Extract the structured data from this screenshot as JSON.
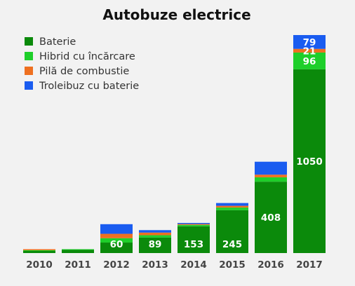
{
  "chart_data": {
    "type": "bar",
    "stacked": true,
    "title": "Autobuze electrice",
    "categories": [
      "2010",
      "2011",
      "2012",
      "2013",
      "2014",
      "2015",
      "2016",
      "2017"
    ],
    "series": [
      {
        "name": "Baterie",
        "color": "#0b8a0b",
        "values": [
          12,
          18,
          60,
          89,
          153,
          245,
          408,
          1050
        ]
      },
      {
        "name": "Hibrid cu încărcare",
        "color": "#1ecf2a",
        "values": [
          4,
          4,
          25,
          13,
          8,
          15,
          25,
          96
        ]
      },
      {
        "name": "Pilă de combustie",
        "color": "#ee7020",
        "values": [
          6,
          0,
          25,
          15,
          5,
          10,
          15,
          21
        ]
      },
      {
        "name": "Troleibuz cu baterie",
        "color": "#1a5cf0",
        "values": [
          0,
          0,
          55,
          14,
          6,
          16,
          74,
          79
        ]
      }
    ],
    "data_labels": [
      {
        "series": 0,
        "category": 2,
        "text": "60"
      },
      {
        "series": 0,
        "category": 3,
        "text": "89"
      },
      {
        "series": 0,
        "category": 4,
        "text": "153"
      },
      {
        "series": 0,
        "category": 5,
        "text": "245"
      },
      {
        "series": 0,
        "category": 6,
        "text": "408"
      },
      {
        "series": 0,
        "category": 7,
        "text": "1050"
      },
      {
        "series": 1,
        "category": 7,
        "text": "96"
      },
      {
        "series": 2,
        "category": 7,
        "text": "21"
      },
      {
        "series": 3,
        "category": 7,
        "text": "79"
      }
    ],
    "ylim": [
      0,
      1246
    ],
    "grid": false,
    "legend_position": "top-left",
    "background": "#f2f2f2"
  }
}
